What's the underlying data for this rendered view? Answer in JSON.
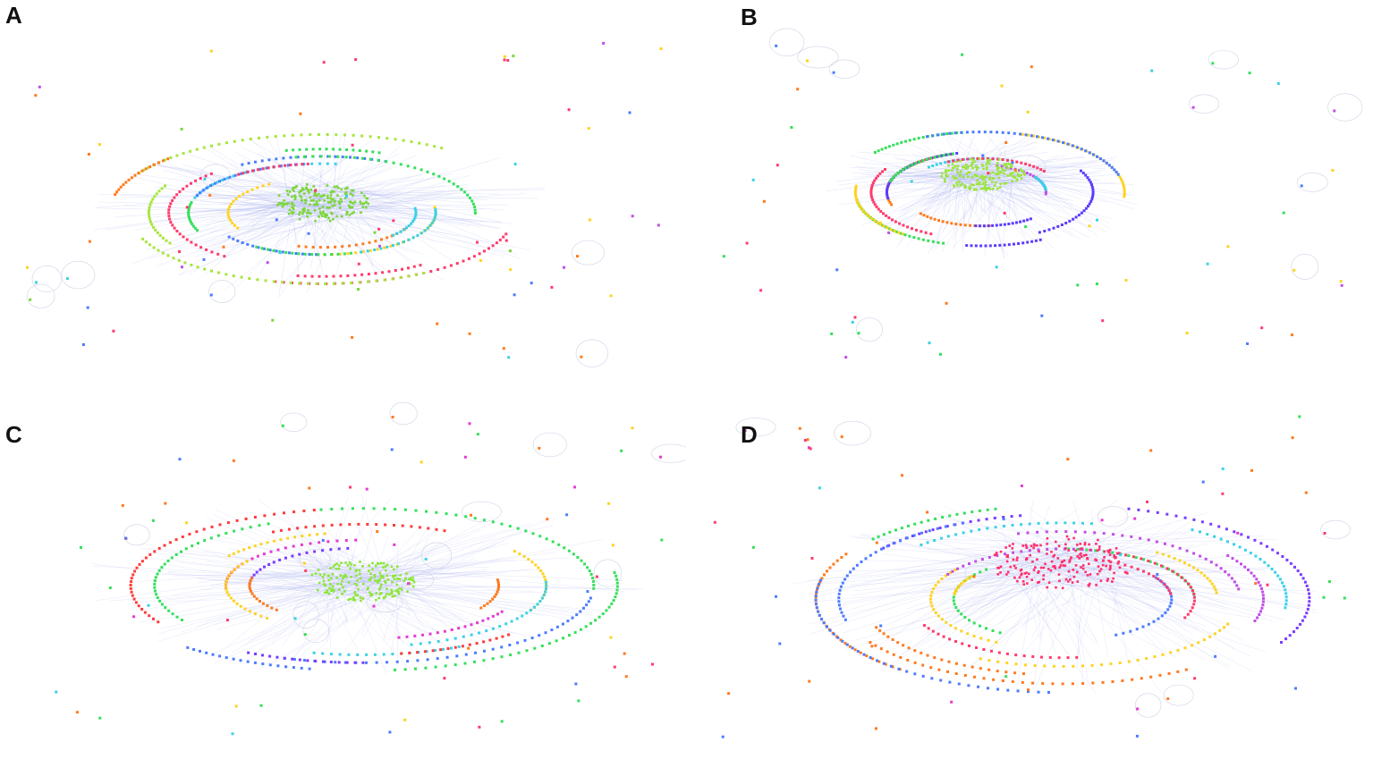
{
  "figure": {
    "panels": [
      {
        "id": "A",
        "label": "A",
        "hub_color": "#7cd63a",
        "ring_colors": [
          "#ff7a1f",
          "#ffd21f",
          "#3ad1e6",
          "#4d7cff",
          "#33e05a",
          "#ff3b6b",
          "#a6e63a",
          "#ff7a1f"
        ],
        "edge_color": "#aab2ee",
        "isolated_colors": [
          "#c24de6",
          "#ff3b6b",
          "#3ad1e6",
          "#7cd63a",
          "#ffd21f",
          "#4d7cff",
          "#ff7a1f"
        ]
      },
      {
        "id": "B",
        "label": "B",
        "hub_color": "#9be63a",
        "ring_colors": [
          "#c24de6",
          "#3ad1e6",
          "#ff7a1f",
          "#ff3b6b",
          "#5a3dff",
          "#33e05a",
          "#ffd21f",
          "#4d7cff"
        ],
        "edge_color": "#aab2ee",
        "isolated_colors": [
          "#c24de6",
          "#ff3b6b",
          "#33e05a",
          "#ffd21f",
          "#4d7cff",
          "#ff7a1f",
          "#3ad1e6"
        ]
      },
      {
        "id": "C",
        "label": "C",
        "hub_color": "#8ee63a",
        "ring_colors": [
          "#7a3dff",
          "#ff7a1f",
          "#e63ad1",
          "#ffd21f",
          "#3ad1e6",
          "#ff3b3b",
          "#33e05a",
          "#4d7cff"
        ],
        "edge_color": "#b4bbf0",
        "isolated_colors": [
          "#e63ad1",
          "#ff3b6b",
          "#33e05a",
          "#ffd21f",
          "#4d7cff",
          "#ff7a1f",
          "#3ad1e6"
        ]
      },
      {
        "id": "D",
        "label": "D",
        "hub_color": "#ff2f6e",
        "ring_colors": [
          "#4d7cff",
          "#33e05a",
          "#ff3b6b",
          "#ffd21f",
          "#c24de6",
          "#3ad1e6",
          "#ff7a1f",
          "#7a3dff"
        ],
        "edge_color": "#b4bbf0",
        "isolated_colors": [
          "#e63ad1",
          "#ff3b6b",
          "#4d7cff",
          "#33e05a",
          "#ff7a1f",
          "#3ad1e6"
        ]
      }
    ]
  }
}
